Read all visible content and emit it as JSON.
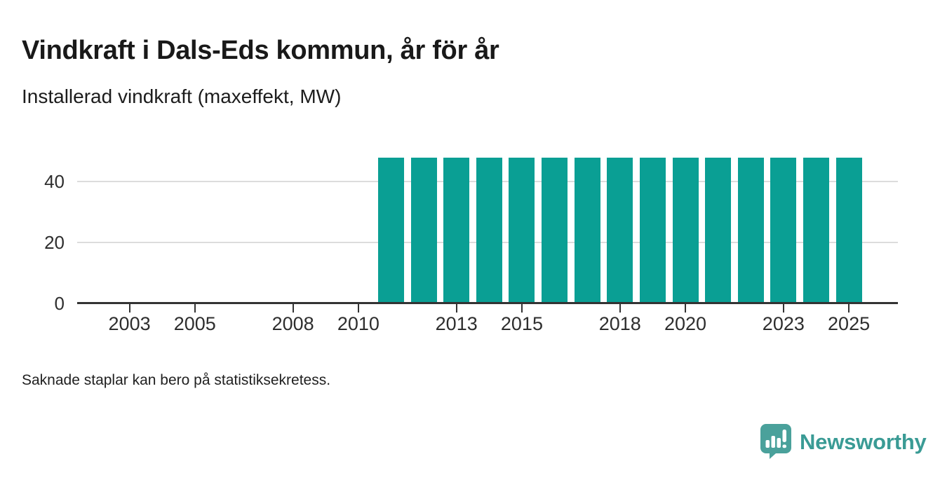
{
  "header": {
    "title": "Vindkraft i Dals-Eds kommun, år för år",
    "subtitle": "Installerad vindkraft (maxeffekt, MW)"
  },
  "chart_data": {
    "type": "bar",
    "title": "Vindkraft i Dals-Eds kommun, år för år",
    "subtitle": "Installerad vindkraft (maxeffekt, MW)",
    "unit": "MW",
    "ylabel": "Installerad vindkraft (maxeffekt, MW)",
    "xlabel": "",
    "x": [
      2011,
      2012,
      2013,
      2014,
      2015,
      2016,
      2017,
      2018,
      2019,
      2020,
      2021,
      2022,
      2023,
      2024,
      2025
    ],
    "values": [
      48,
      48,
      48,
      48,
      48,
      48,
      48,
      48,
      48,
      48,
      48,
      48,
      48,
      48,
      48
    ],
    "x_ticks": [
      2003,
      2005,
      2008,
      2010,
      2013,
      2015,
      2018,
      2020,
      2023,
      2025
    ],
    "y_ticks": [
      0,
      20,
      40
    ],
    "ylim": [
      0,
      50
    ],
    "x_domain": [
      2001.4,
      2026.5
    ],
    "grid": "horizontal",
    "legend": "none",
    "bar_color": "#0a9f94",
    "gridline_color": "#dcdcdc",
    "axis_color": "#333333",
    "tick_label_color": "#2e2e2e"
  },
  "footer": {
    "note": "Saknade staplar kan bero på statistiksekretess."
  },
  "branding": {
    "name": "Newsworthy",
    "text_color": "#3a9b95",
    "icon_color": "#4aa19b",
    "icon": "speech-bubble-bar-chart-icon"
  }
}
